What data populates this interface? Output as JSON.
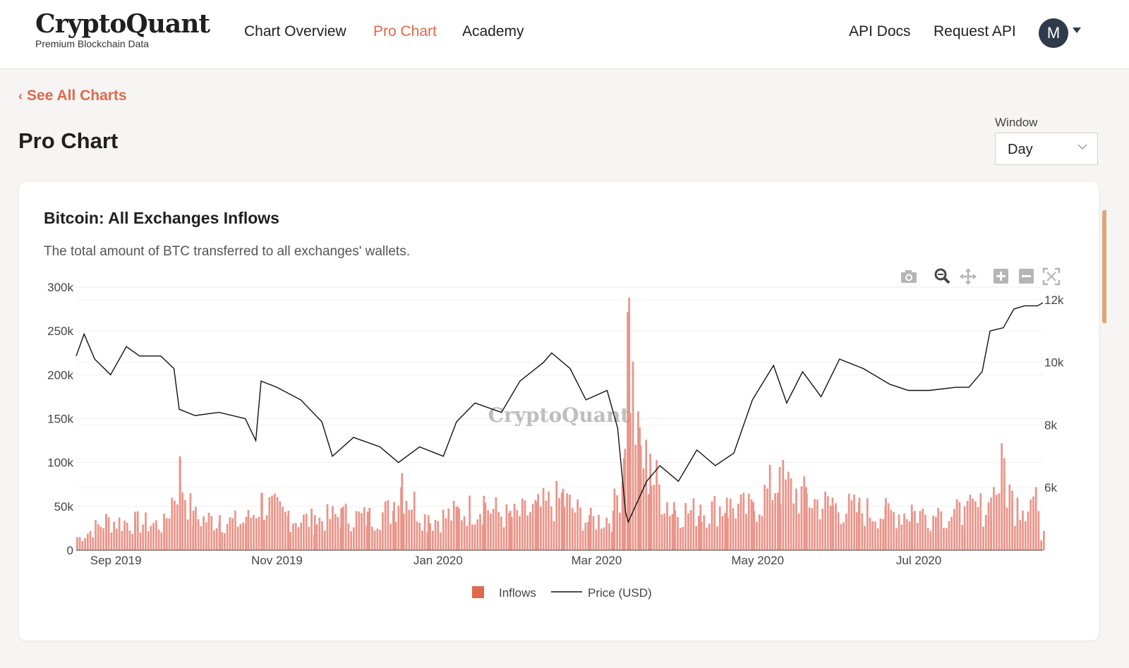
{
  "header": {
    "logo": "CryptoQuant",
    "tagline": "Premium Blockchain Data",
    "nav": [
      {
        "label": "Chart Overview",
        "active": false
      },
      {
        "label": "Pro Chart",
        "active": true
      },
      {
        "label": "Academy",
        "active": false
      }
    ],
    "right_nav": [
      {
        "label": "API Docs"
      },
      {
        "label": "Request API"
      }
    ],
    "avatar_initial": "M"
  },
  "page": {
    "back_link": "See All Charts",
    "title": "Pro Chart",
    "window_label": "Window",
    "window_value": "Day"
  },
  "card": {
    "title": "Bitcoin: All Exchanges Inflows",
    "description": "The total amount of BTC transferred to all exchanges' wallets."
  },
  "toolbar_icons": [
    "camera-icon",
    "zoom-icon",
    "pan-icon",
    "zoom-in-icon",
    "zoom-out-icon",
    "autoscale-icon"
  ],
  "colors": {
    "accent": "#e0694b",
    "bar": "#e9958a",
    "line": "#111111"
  },
  "chart_data": {
    "type": "bar+line",
    "watermark": "CryptoQuant",
    "x_start": "2019-08-17",
    "x_end": "2020-08-17",
    "x_ticks": [
      {
        "label": "Sep 2019",
        "date": "2019-09-01"
      },
      {
        "label": "Nov 2019",
        "date": "2019-11-01"
      },
      {
        "label": "Jan 2020",
        "date": "2020-01-01"
      },
      {
        "label": "Mar 2020",
        "date": "2020-03-01"
      },
      {
        "label": "May 2020",
        "date": "2020-05-01"
      },
      {
        "label": "Jul 2020",
        "date": "2020-07-01"
      }
    ],
    "y_left": {
      "range": [
        0,
        300000
      ],
      "ticks": [
        {
          "v": 0,
          "label": "0"
        },
        {
          "v": 50000,
          "label": "50k"
        },
        {
          "v": 100000,
          "label": "100k"
        },
        {
          "v": 150000,
          "label": "150k"
        },
        {
          "v": 200000,
          "label": "200k"
        },
        {
          "v": 250000,
          "label": "250k"
        },
        {
          "v": 300000,
          "label": "300k"
        }
      ]
    },
    "y_right": {
      "range": [
        4000,
        12400
      ],
      "ticks": [
        {
          "v": 6000,
          "label": "6k"
        },
        {
          "v": 8000,
          "label": "8k"
        },
        {
          "v": 10000,
          "label": "10k"
        },
        {
          "v": 12000,
          "label": "12k"
        }
      ]
    },
    "legend": [
      {
        "name": "Inflows",
        "kind": "bar"
      },
      {
        "name": "Price (USD)",
        "kind": "line"
      }
    ],
    "series": [
      {
        "name": "Inflows",
        "axis": "left",
        "points": [
          [
            "2019-08-17",
            15000
          ],
          [
            "2019-08-28",
            40000
          ],
          [
            "2019-09-08",
            38000
          ],
          [
            "2019-09-19",
            35000
          ],
          [
            "2019-09-25",
            104000
          ],
          [
            "2019-09-30",
            45000
          ],
          [
            "2019-10-10",
            40000
          ],
          [
            "2019-10-20",
            38000
          ],
          [
            "2019-10-26",
            65000
          ],
          [
            "2019-11-05",
            45000
          ],
          [
            "2019-11-15",
            40000
          ],
          [
            "2019-11-25",
            48000
          ],
          [
            "2019-12-05",
            44000
          ],
          [
            "2019-12-15",
            55000
          ],
          [
            "2019-12-18",
            88000
          ],
          [
            "2019-12-28",
            40000
          ],
          [
            "2020-01-08",
            50000
          ],
          [
            "2020-01-18",
            62000
          ],
          [
            "2020-01-28",
            45000
          ],
          [
            "2020-02-07",
            55000
          ],
          [
            "2020-02-17",
            70000
          ],
          [
            "2020-02-27",
            40000
          ],
          [
            "2020-03-07",
            45000
          ],
          [
            "2020-03-11",
            105000
          ],
          [
            "2020-03-13",
            288000
          ],
          [
            "2020-03-17",
            140000
          ],
          [
            "2020-03-21",
            110000
          ],
          [
            "2020-03-30",
            55000
          ],
          [
            "2020-04-09",
            52000
          ],
          [
            "2020-04-19",
            60000
          ],
          [
            "2020-04-29",
            55000
          ],
          [
            "2020-05-09",
            95000
          ],
          [
            "2020-05-19",
            72000
          ],
          [
            "2020-05-29",
            60000
          ],
          [
            "2020-06-08",
            55000
          ],
          [
            "2020-06-18",
            50000
          ],
          [
            "2020-06-28",
            52000
          ],
          [
            "2020-07-08",
            48000
          ],
          [
            "2020-07-18",
            50000
          ],
          [
            "2020-07-28",
            60000
          ],
          [
            "2020-08-02",
            105000
          ],
          [
            "2020-08-07",
            60000
          ],
          [
            "2020-08-14",
            72000
          ],
          [
            "2020-08-17",
            22000
          ]
        ]
      },
      {
        "name": "Price (USD)",
        "axis": "right",
        "points": [
          [
            "2019-08-17",
            10200
          ],
          [
            "2019-08-20",
            10900
          ],
          [
            "2019-08-24",
            10100
          ],
          [
            "2019-08-30",
            9600
          ],
          [
            "2019-09-05",
            10500
          ],
          [
            "2019-09-10",
            10200
          ],
          [
            "2019-09-18",
            10200
          ],
          [
            "2019-09-23",
            9800
          ],
          [
            "2019-09-25",
            8500
          ],
          [
            "2019-10-01",
            8300
          ],
          [
            "2019-10-10",
            8400
          ],
          [
            "2019-10-20",
            8200
          ],
          [
            "2019-10-24",
            7500
          ],
          [
            "2019-10-26",
            9400
          ],
          [
            "2019-11-01",
            9200
          ],
          [
            "2019-11-10",
            8800
          ],
          [
            "2019-11-18",
            8100
          ],
          [
            "2019-11-22",
            7000
          ],
          [
            "2019-11-30",
            7600
          ],
          [
            "2019-12-10",
            7300
          ],
          [
            "2019-12-17",
            6800
          ],
          [
            "2019-12-25",
            7300
          ],
          [
            "2020-01-03",
            7000
          ],
          [
            "2020-01-08",
            8100
          ],
          [
            "2020-01-15",
            8700
          ],
          [
            "2020-01-25",
            8400
          ],
          [
            "2020-02-01",
            9400
          ],
          [
            "2020-02-10",
            10000
          ],
          [
            "2020-02-13",
            10300
          ],
          [
            "2020-02-20",
            9800
          ],
          [
            "2020-02-26",
            8800
          ],
          [
            "2020-03-05",
            9100
          ],
          [
            "2020-03-09",
            7900
          ],
          [
            "2020-03-12",
            5200
          ],
          [
            "2020-03-13",
            4900
          ],
          [
            "2020-03-20",
            6200
          ],
          [
            "2020-03-25",
            6700
          ],
          [
            "2020-04-01",
            6200
          ],
          [
            "2020-04-08",
            7200
          ],
          [
            "2020-04-15",
            6700
          ],
          [
            "2020-04-22",
            7100
          ],
          [
            "2020-04-29",
            8800
          ],
          [
            "2020-05-07",
            9900
          ],
          [
            "2020-05-12",
            8700
          ],
          [
            "2020-05-18",
            9700
          ],
          [
            "2020-05-25",
            8900
          ],
          [
            "2020-06-01",
            10100
          ],
          [
            "2020-06-10",
            9800
          ],
          [
            "2020-06-20",
            9300
          ],
          [
            "2020-06-27",
            9100
          ],
          [
            "2020-07-05",
            9100
          ],
          [
            "2020-07-15",
            9200
          ],
          [
            "2020-07-20",
            9200
          ],
          [
            "2020-07-25",
            9700
          ],
          [
            "2020-07-28",
            11000
          ],
          [
            "2020-08-02",
            11100
          ],
          [
            "2020-08-06",
            11700
          ],
          [
            "2020-08-10",
            11800
          ],
          [
            "2020-08-15",
            11800
          ],
          [
            "2020-08-17",
            11900
          ]
        ]
      }
    ]
  }
}
